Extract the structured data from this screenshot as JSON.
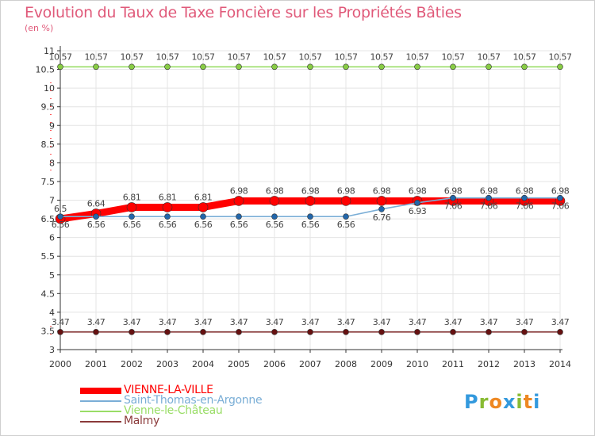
{
  "chart_data": {
    "type": "line",
    "title": "Evolution du Taux de Taxe Foncière sur les Propriétés Bâties",
    "subtitle": "(en %)",
    "xlabel": "",
    "ylabel": "",
    "x": [
      "2000",
      "2001",
      "2002",
      "2003",
      "2004",
      "2005",
      "2006",
      "2007",
      "2008",
      "2009",
      "2010",
      "2011",
      "2012",
      "2013",
      "2014"
    ],
    "ylim": [
      3,
      11
    ],
    "yticks": [
      "3",
      "3.5",
      "4",
      "4.5",
      "5",
      "5.5",
      "6",
      "6.5",
      "7",
      "7.5",
      "8",
      "8.5",
      "9",
      "9.5",
      "10",
      "10.5",
      "11"
    ],
    "grid": true,
    "series": [
      {
        "name": "VIENNE-LA-VILLE",
        "color": "#ff0000",
        "labels": true,
        "values": [
          6.5,
          6.64,
          6.81,
          6.81,
          6.81,
          6.98,
          6.98,
          6.98,
          6.98,
          6.98,
          6.98,
          6.98,
          6.98,
          6.98,
          6.98
        ]
      },
      {
        "name": "Saint-Thomas-en-Argonne",
        "color": "#7aaed6",
        "labels": true,
        "values": [
          6.56,
          6.56,
          6.56,
          6.56,
          6.56,
          6.56,
          6.56,
          6.56,
          6.56,
          6.76,
          6.93,
          7.06,
          7.06,
          7.06,
          7.06
        ]
      },
      {
        "name": "Vienne-le-Château",
        "color": "#99dd66",
        "labels": true,
        "values": [
          10.57,
          10.57,
          10.57,
          10.57,
          10.57,
          10.57,
          10.57,
          10.57,
          10.57,
          10.57,
          10.57,
          10.57,
          10.57,
          10.57,
          10.57
        ]
      },
      {
        "name": "Malmy",
        "color": "#8b3a3a",
        "labels": true,
        "values": [
          3.47,
          3.47,
          3.47,
          3.47,
          3.47,
          3.47,
          3.47,
          3.47,
          3.47,
          3.47,
          3.47,
          3.47,
          3.47,
          3.47,
          3.47
        ]
      }
    ]
  },
  "branding": {
    "logo_letters": [
      "P",
      "r",
      "o",
      "x",
      "i",
      "t",
      "i"
    ],
    "logo_colors": [
      "#3399dd",
      "#88bb33",
      "#ee8822",
      "#3399dd",
      "#88bb33",
      "#ee8822",
      "#3399dd"
    ]
  }
}
